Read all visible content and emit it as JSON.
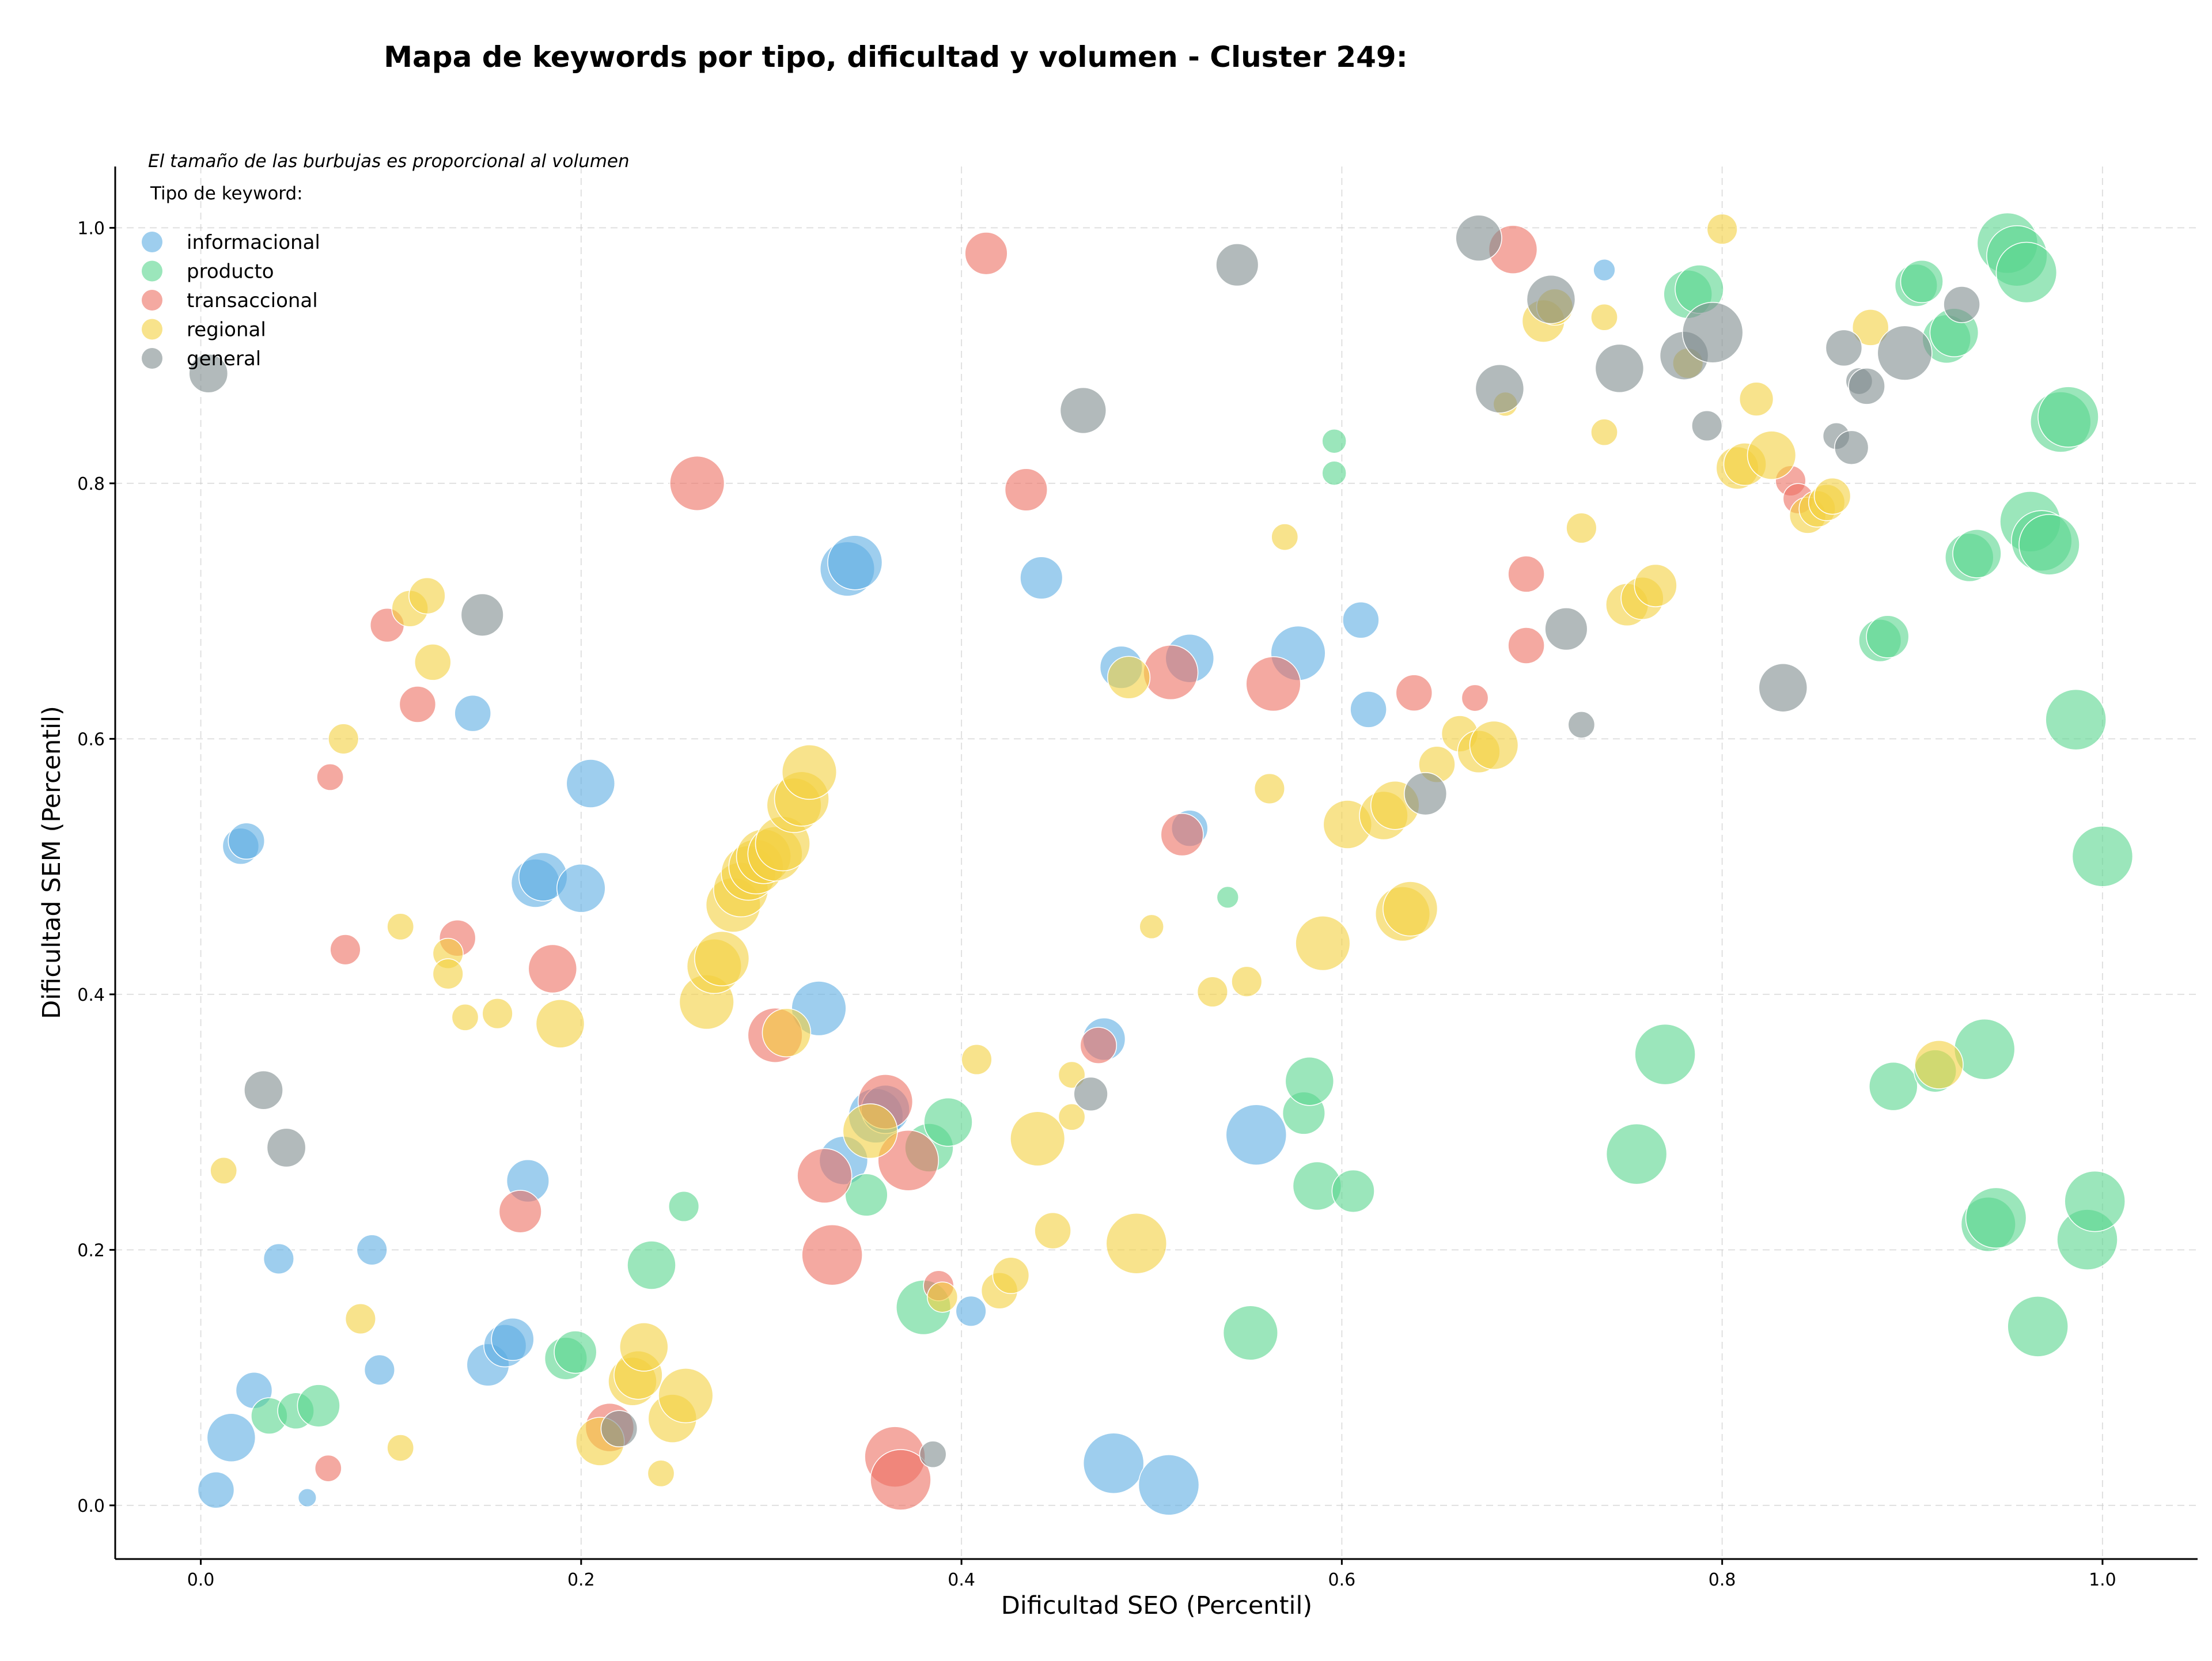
{
  "chart_data": {
    "type": "scatter",
    "title": "Mapa de keywords por tipo, dificultad y volumen - Cluster 249:",
    "xlabel": "Dificultad SEO (Percentil)",
    "ylabel": "Dificultad SEM (Percentil)",
    "note": "El tamaño de las burbujas es proporcional al volumen",
    "legend_title": "Tipo de keyword:",
    "legend_position": "top-left",
    "xlim": [
      -0.045,
      1.05
    ],
    "ylim": [
      -0.042,
      1.048
    ],
    "xticks": [
      0.0,
      0.2,
      0.4,
      0.6,
      0.8,
      1.0
    ],
    "yticks": [
      0.0,
      0.2,
      0.4,
      0.6,
      0.8,
      1.0
    ],
    "xtick_labels": [
      "0.0",
      "0.2",
      "0.4",
      "0.6",
      "0.8",
      "1.0"
    ],
    "ytick_labels": [
      "0.0",
      "0.2",
      "0.4",
      "0.6",
      "0.8",
      "1.0"
    ],
    "grid": true,
    "bubble_size": "proportional to volume (relative size 1-5)",
    "series": [
      {
        "name": "informacional",
        "color": "#5dade2",
        "points": [
          [
            0.008,
            0.012,
            3
          ],
          [
            0.016,
            0.053,
            4
          ],
          [
            0.028,
            0.09,
            3
          ],
          [
            0.041,
            0.193,
            2.5
          ],
          [
            0.056,
            0.006,
            1.5
          ],
          [
            0.021,
            0.516,
            3
          ],
          [
            0.024,
            0.52,
            3
          ],
          [
            0.09,
            0.2,
            2.5
          ],
          [
            0.094,
            0.106,
            2.5
          ],
          [
            0.143,
            0.62,
            3
          ],
          [
            0.151,
            0.11,
            3.5
          ],
          [
            0.16,
            0.125,
            3.5
          ],
          [
            0.164,
            0.13,
            3.5
          ],
          [
            0.172,
            0.254,
            3.5
          ],
          [
            0.176,
            0.487,
            4
          ],
          [
            0.18,
            0.492,
            4
          ],
          [
            0.2,
            0.483,
            4
          ],
          [
            0.205,
            0.565,
            4
          ],
          [
            0.325,
            0.389,
            4.5
          ],
          [
            0.338,
            0.27,
            4
          ],
          [
            0.34,
            0.733,
            4.5
          ],
          [
            0.344,
            0.738,
            4.5
          ],
          [
            0.355,
            0.305,
            4.5
          ],
          [
            0.36,
            0.31,
            4
          ],
          [
            0.405,
            0.152,
            2.5
          ],
          [
            0.442,
            0.726,
            3.5
          ],
          [
            0.475,
            0.365,
            3.5
          ],
          [
            0.48,
            0.033,
            5
          ],
          [
            0.484,
            0.656,
            3.5
          ],
          [
            0.509,
            0.016,
            5
          ],
          [
            0.52,
            0.663,
            4
          ],
          [
            0.52,
            0.53,
            3
          ],
          [
            0.555,
            0.29,
            5
          ],
          [
            0.577,
            0.667,
            4.5
          ],
          [
            0.61,
            0.693,
            3
          ],
          [
            0.614,
            0.623,
            3
          ],
          [
            0.738,
            0.967,
            1.8
          ]
        ]
      },
      {
        "name": "producto",
        "color": "#58d68d",
        "points": [
          [
            0.036,
            0.07,
            3
          ],
          [
            0.05,
            0.074,
            3
          ],
          [
            0.062,
            0.078,
            3.5
          ],
          [
            0.192,
            0.115,
            3.5
          ],
          [
            0.197,
            0.12,
            3.5
          ],
          [
            0.237,
            0.188,
            4
          ],
          [
            0.254,
            0.234,
            2.5
          ],
          [
            0.35,
            0.243,
            3.5
          ],
          [
            0.38,
            0.155,
            4.5
          ],
          [
            0.383,
            0.28,
            4
          ],
          [
            0.393,
            0.3,
            4
          ],
          [
            0.54,
            0.476,
            1.8
          ],
          [
            0.552,
            0.135,
            4.5
          ],
          [
            0.58,
            0.307,
            3.5
          ],
          [
            0.583,
            0.332,
            4
          ],
          [
            0.587,
            0.25,
            4
          ],
          [
            0.606,
            0.246,
            3.5
          ],
          [
            0.596,
            0.833,
            2
          ],
          [
            0.596,
            0.808,
            2
          ],
          [
            0.755,
            0.275,
            5
          ],
          [
            0.77,
            0.353,
            5
          ],
          [
            0.782,
            0.948,
            4
          ],
          [
            0.788,
            0.952,
            4
          ],
          [
            0.89,
            0.328,
            4
          ],
          [
            0.883,
            0.677,
            3.5
          ],
          [
            0.887,
            0.68,
            3.5
          ],
          [
            0.902,
            0.955,
            3.5
          ],
          [
            0.905,
            0.958,
            3.5
          ],
          [
            0.912,
            0.34,
            3.5
          ],
          [
            0.918,
            0.913,
            4
          ],
          [
            0.922,
            0.918,
            4
          ],
          [
            0.93,
            0.742,
            4
          ],
          [
            0.934,
            0.745,
            4
          ],
          [
            0.938,
            0.357,
            5
          ],
          [
            0.94,
            0.22,
            4.5
          ],
          [
            0.944,
            0.225,
            5
          ],
          [
            0.95,
            0.988,
            5
          ],
          [
            0.955,
            0.978,
            5
          ],
          [
            0.96,
            0.965,
            5
          ],
          [
            0.962,
            0.77,
            5
          ],
          [
            0.966,
            0.14,
            5
          ],
          [
            0.968,
            0.755,
            5
          ],
          [
            0.972,
            0.752,
            5
          ],
          [
            0.978,
            0.848,
            5
          ],
          [
            0.982,
            0.852,
            5
          ],
          [
            0.986,
            0.615,
            5
          ],
          [
            0.992,
            0.208,
            5
          ],
          [
            0.996,
            0.238,
            5
          ],
          [
            1.0,
            0.508,
            5
          ]
        ]
      },
      {
        "name": "transaccional",
        "color": "#ec7063",
        "points": [
          [
            0.067,
            0.029,
            2.2
          ],
          [
            0.068,
            0.57,
            2.2
          ],
          [
            0.076,
            0.435,
            2.5
          ],
          [
            0.098,
            0.689,
            2.8
          ],
          [
            0.114,
            0.627,
            3
          ],
          [
            0.135,
            0.444,
            3
          ],
          [
            0.168,
            0.23,
            3.5
          ],
          [
            0.185,
            0.42,
            4
          ],
          [
            0.215,
            0.061,
            4
          ],
          [
            0.261,
            0.8,
            4.5
          ],
          [
            0.302,
            0.368,
            4.5
          ],
          [
            0.328,
            0.258,
            4.5
          ],
          [
            0.332,
            0.196,
            5
          ],
          [
            0.36,
            0.316,
            4.5
          ],
          [
            0.365,
            0.038,
            5
          ],
          [
            0.368,
            0.02,
            5
          ],
          [
            0.372,
            0.27,
            5
          ],
          [
            0.388,
            0.172,
            2.5
          ],
          [
            0.413,
            0.98,
            3.5
          ],
          [
            0.434,
            0.795,
            3.5
          ],
          [
            0.472,
            0.36,
            3
          ],
          [
            0.51,
            0.652,
            4.5
          ],
          [
            0.516,
            0.525,
            3.5
          ],
          [
            0.564,
            0.643,
            4.5
          ],
          [
            0.638,
            0.636,
            3
          ],
          [
            0.67,
            0.632,
            2.2
          ],
          [
            0.697,
            0.673,
            3
          ],
          [
            0.697,
            0.729,
            3
          ],
          [
            0.69,
            0.983,
            4
          ],
          [
            0.836,
            0.802,
            2.5
          ],
          [
            0.84,
            0.788,
            2.5
          ]
        ]
      },
      {
        "name": "regional",
        "color": "#f4d03f",
        "points": [
          [
            0.012,
            0.262,
            2.2
          ],
          [
            0.084,
            0.146,
            2.5
          ],
          [
            0.075,
            0.6,
            2.5
          ],
          [
            0.105,
            0.045,
            2.2
          ],
          [
            0.105,
            0.453,
            2.2
          ],
          [
            0.11,
            0.702,
            3
          ],
          [
            0.119,
            0.712,
            3
          ],
          [
            0.122,
            0.66,
            3
          ],
          [
            0.13,
            0.432,
            2.5
          ],
          [
            0.13,
            0.416,
            2.5
          ],
          [
            0.139,
            0.382,
            2.2
          ],
          [
            0.156,
            0.385,
            2.5
          ],
          [
            0.189,
            0.377,
            4
          ],
          [
            0.21,
            0.05,
            4
          ],
          [
            0.227,
            0.097,
            4
          ],
          [
            0.23,
            0.102,
            4
          ],
          [
            0.233,
            0.124,
            4
          ],
          [
            0.242,
            0.025,
            2.2
          ],
          [
            0.248,
            0.068,
            4
          ],
          [
            0.255,
            0.086,
            4.5
          ],
          [
            0.266,
            0.394,
            4.5
          ],
          [
            0.27,
            0.422,
            4.5
          ],
          [
            0.274,
            0.428,
            4.5
          ],
          [
            0.28,
            0.47,
            4.5
          ],
          [
            0.284,
            0.482,
            4.5
          ],
          [
            0.288,
            0.495,
            4.5
          ],
          [
            0.292,
            0.5,
            4.5
          ],
          [
            0.296,
            0.508,
            4.5
          ],
          [
            0.302,
            0.51,
            4.5
          ],
          [
            0.306,
            0.518,
            4.5
          ],
          [
            0.312,
            0.548,
            4.5
          ],
          [
            0.316,
            0.553,
            4.5
          ],
          [
            0.32,
            0.574,
            4.5
          ],
          [
            0.308,
            0.37,
            4
          ],
          [
            0.352,
            0.293,
            4.5
          ],
          [
            0.39,
            0.163,
            2.5
          ],
          [
            0.408,
            0.349,
            2.5
          ],
          [
            0.42,
            0.168,
            3
          ],
          [
            0.426,
            0.18,
            3
          ],
          [
            0.44,
            0.287,
            4.5
          ],
          [
            0.448,
            0.215,
            3
          ],
          [
            0.458,
            0.337,
            2.2
          ],
          [
            0.458,
            0.304,
            2.2
          ],
          [
            0.488,
            0.648,
            3.5
          ],
          [
            0.492,
            0.205,
            5
          ],
          [
            0.5,
            0.453,
            2
          ],
          [
            0.532,
            0.402,
            2.5
          ],
          [
            0.55,
            0.41,
            2.5
          ],
          [
            0.562,
            0.561,
            2.5
          ],
          [
            0.57,
            0.758,
            2.2
          ],
          [
            0.59,
            0.44,
            4.5
          ],
          [
            0.603,
            0.533,
            4
          ],
          [
            0.622,
            0.54,
            4
          ],
          [
            0.628,
            0.548,
            4
          ],
          [
            0.632,
            0.463,
            4.5
          ],
          [
            0.636,
            0.467,
            4.5
          ],
          [
            0.65,
            0.58,
            3
          ],
          [
            0.662,
            0.604,
            3
          ],
          [
            0.672,
            0.59,
            3.5
          ],
          [
            0.68,
            0.595,
            4
          ],
          [
            0.686,
            0.862,
            2
          ],
          [
            0.706,
            0.927,
            3.5
          ],
          [
            0.712,
            0.938,
            3
          ],
          [
            0.726,
            0.765,
            2.5
          ],
          [
            0.738,
            0.93,
            2.2
          ],
          [
            0.738,
            0.84,
            2.2
          ],
          [
            0.75,
            0.705,
            3.5
          ],
          [
            0.758,
            0.71,
            3.5
          ],
          [
            0.765,
            0.72,
            3.5
          ],
          [
            0.782,
            0.894,
            2.5
          ],
          [
            0.8,
            0.999,
            2.5
          ],
          [
            0.808,
            0.812,
            3.5
          ],
          [
            0.812,
            0.815,
            3.5
          ],
          [
            0.818,
            0.866,
            2.8
          ],
          [
            0.826,
            0.822,
            4
          ],
          [
            0.845,
            0.775,
            3
          ],
          [
            0.85,
            0.78,
            3
          ],
          [
            0.855,
            0.785,
            3
          ],
          [
            0.858,
            0.79,
            3
          ],
          [
            0.878,
            0.922,
            3
          ],
          [
            0.914,
            0.345,
            4
          ]
        ]
      },
      {
        "name": "general",
        "color": "#7f8c8d",
        "points": [
          [
            0.004,
            0.886,
            3.2
          ],
          [
            0.033,
            0.325,
            3.2
          ],
          [
            0.045,
            0.28,
            3.2
          ],
          [
            0.148,
            0.697,
            3.5
          ],
          [
            0.22,
            0.06,
            3
          ],
          [
            0.385,
            0.04,
            2.2
          ],
          [
            0.464,
            0.857,
            3.8
          ],
          [
            0.468,
            0.322,
            2.8
          ],
          [
            0.545,
            0.971,
            3.5
          ],
          [
            0.644,
            0.557,
            3.5
          ],
          [
            0.672,
            0.992,
            3.8
          ],
          [
            0.683,
            0.874,
            4
          ],
          [
            0.71,
            0.944,
            4
          ],
          [
            0.718,
            0.686,
            3.5
          ],
          [
            0.726,
            0.611,
            2.2
          ],
          [
            0.746,
            0.89,
            4
          ],
          [
            0.78,
            0.9,
            4
          ],
          [
            0.792,
            0.845,
            2.5
          ],
          [
            0.795,
            0.918,
            5
          ],
          [
            0.832,
            0.64,
            4
          ],
          [
            0.86,
            0.837,
            2.2
          ],
          [
            0.864,
            0.906,
            3
          ],
          [
            0.868,
            0.828,
            2.8
          ],
          [
            0.872,
            0.88,
            2.2
          ],
          [
            0.876,
            0.876,
            3
          ],
          [
            0.896,
            0.902,
            4.5
          ],
          [
            0.926,
            0.94,
            3
          ]
        ]
      }
    ]
  }
}
